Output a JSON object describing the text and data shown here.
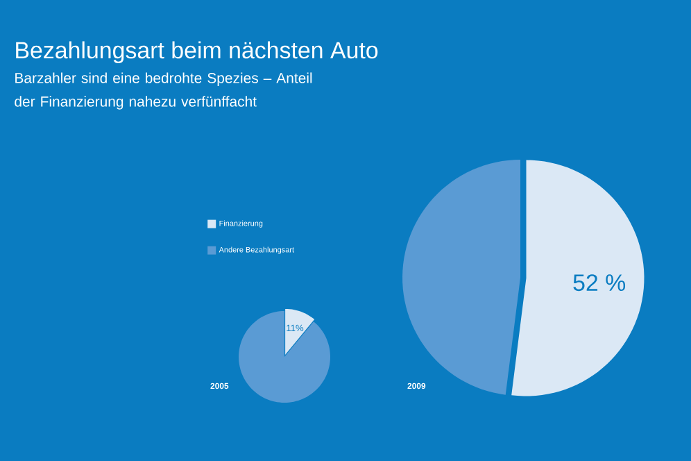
{
  "chart_data": [
    {
      "type": "pie",
      "title": "Bezahlungsart beim nächsten Auto",
      "subtitle": "Barzahler sind eine bedrohte Spezies – Anteil der Finanzierung nahezu verfünffacht",
      "xlabel": "2005",
      "categories": [
        "Finanzierung",
        "Andere Bezahlungsart"
      ],
      "values": [
        11,
        89
      ],
      "value_labels": [
        "11%",
        null
      ],
      "colors": [
        "#dbe8f5",
        "#5a9bd4"
      ],
      "legend": "top left"
    },
    {
      "type": "pie",
      "xlabel": "2009",
      "categories": [
        null,
        null
      ],
      "values": [
        52,
        48
      ],
      "value_labels": [
        "52 %",
        null
      ],
      "colors": [
        "#dbe8f5",
        "#5a9bd4"
      ]
    }
  ]
}
